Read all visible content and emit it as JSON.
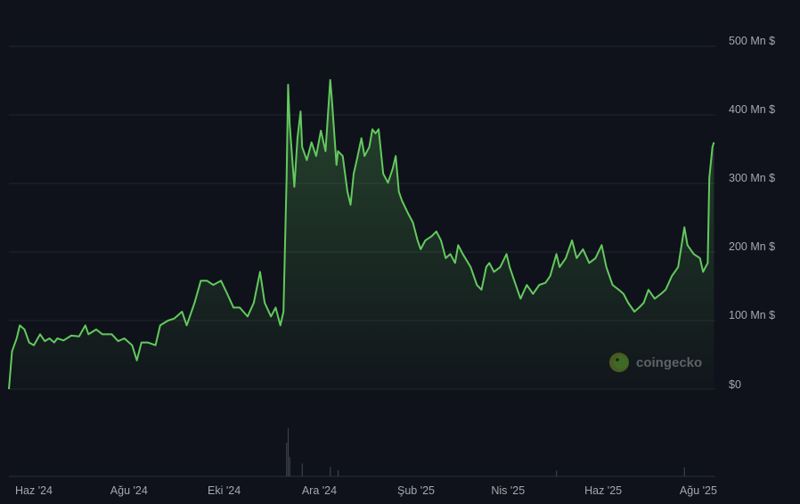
{
  "chart_data": {
    "type": "area",
    "title": "",
    "xlabel": "",
    "ylabel": "",
    "y_unit": "Mn $",
    "ylim": [
      0,
      500
    ],
    "grid": true,
    "y_ticks": [
      {
        "value": 0,
        "label": "$0"
      },
      {
        "value": 100,
        "label": "100 Mn $"
      },
      {
        "value": 200,
        "label": "200 Mn $"
      },
      {
        "value": 300,
        "label": "300 Mn $"
      },
      {
        "value": 400,
        "label": "400 Mn $"
      },
      {
        "value": 500,
        "label": "500 Mn $"
      }
    ],
    "x_ticks": [
      {
        "date": "2024-06-01",
        "label": "Haz '24"
      },
      {
        "date": "2024-08-01",
        "label": "Ağu '24"
      },
      {
        "date": "2024-10-01",
        "label": "Eki '24"
      },
      {
        "date": "2024-12-01",
        "label": "Ara '24"
      },
      {
        "date": "2025-02-01",
        "label": "Şub '25"
      },
      {
        "date": "2025-04-01",
        "label": "Nis '25"
      },
      {
        "date": "2025-06-01",
        "label": "Haz '25"
      },
      {
        "date": "2025-08-01",
        "label": "Ağu '25"
      }
    ],
    "line_color": "#63c95e",
    "background": "#0f121a",
    "series": [
      {
        "x": [
          "2024-05-16",
          "2024-05-18",
          "2024-05-21",
          "2024-05-23",
          "2024-05-26",
          "2024-05-29",
          "2024-06-01",
          "2024-06-05",
          "2024-06-08",
          "2024-06-11",
          "2024-06-14",
          "2024-06-16",
          "2024-06-20",
          "2024-06-25",
          "2024-06-30",
          "2024-07-04",
          "2024-07-06",
          "2024-07-11",
          "2024-07-15",
          "2024-07-21",
          "2024-07-25",
          "2024-07-29",
          "2024-08-03",
          "2024-08-06",
          "2024-08-09",
          "2024-08-13",
          "2024-08-18",
          "2024-08-21",
          "2024-08-26",
          "2024-08-30",
          "2024-09-04",
          "2024-09-07",
          "2024-09-12",
          "2024-09-16",
          "2024-09-20",
          "2024-09-24",
          "2024-09-29",
          "2024-10-03",
          "2024-10-07",
          "2024-10-11",
          "2024-10-16",
          "2024-10-20",
          "2024-10-24",
          "2024-10-27",
          "2024-10-31",
          "2024-11-03",
          "2024-11-06",
          "2024-11-08",
          "2024-11-10",
          "2024-11-11",
          "2024-11-12",
          "2024-11-15",
          "2024-11-17",
          "2024-11-19",
          "2024-11-20",
          "2024-11-23",
          "2024-11-26",
          "2024-11-29",
          "2024-12-02",
          "2024-12-05",
          "2024-12-08",
          "2024-12-09",
          "2024-12-12",
          "2024-12-13",
          "2024-12-16",
          "2024-12-19",
          "2024-12-21",
          "2024-12-23",
          "2024-12-25",
          "2024-12-28",
          "2024-12-30",
          "2025-01-02",
          "2025-01-04",
          "2025-01-06",
          "2025-01-08",
          "2025-01-11",
          "2025-01-14",
          "2025-01-17",
          "2025-01-19",
          "2025-01-21",
          "2025-01-23",
          "2025-01-27",
          "2025-01-30",
          "2025-02-02",
          "2025-02-04",
          "2025-02-07",
          "2025-02-11",
          "2025-02-14",
          "2025-02-17",
          "2025-02-20",
          "2025-02-23",
          "2025-02-26",
          "2025-02-28",
          "2025-03-03",
          "2025-03-08",
          "2025-03-12",
          "2025-03-15",
          "2025-03-18",
          "2025-03-20",
          "2025-03-23",
          "2025-03-27",
          "2025-03-31",
          "2025-04-02",
          "2025-04-05",
          "2025-04-09",
          "2025-04-13",
          "2025-04-17",
          "2025-04-21",
          "2025-04-25",
          "2025-04-28",
          "2025-05-02",
          "2025-05-04",
          "2025-05-08",
          "2025-05-12",
          "2025-05-15",
          "2025-05-19",
          "2025-05-23",
          "2025-05-27",
          "2025-05-31",
          "2025-06-03",
          "2025-06-07",
          "2025-06-11",
          "2025-06-14",
          "2025-06-17",
          "2025-06-21",
          "2025-06-24",
          "2025-06-27",
          "2025-06-30",
          "2025-07-04",
          "2025-07-08",
          "2025-07-11",
          "2025-07-15",
          "2025-07-19",
          "2025-07-23",
          "2025-07-25",
          "2025-07-29",
          "2025-08-02",
          "2025-08-04",
          "2025-08-07",
          "2025-08-08",
          "2025-08-10",
          "2025-08-11"
        ],
        "values": [
          0,
          55,
          74,
          93,
          87,
          68,
          64,
          80,
          70,
          74,
          68,
          74,
          71,
          78,
          77,
          93,
          80,
          87,
          80,
          80,
          70,
          74,
          64,
          42,
          68,
          68,
          64,
          93,
          100,
          103,
          113,
          93,
          126,
          158,
          158,
          152,
          158,
          139,
          119,
          119,
          106,
          126,
          171,
          126,
          106,
          119,
          93,
          113,
          308,
          444,
          386,
          295,
          366,
          405,
          353,
          334,
          360,
          340,
          377,
          347,
          451,
          425,
          327,
          347,
          340,
          288,
          269,
          314,
          334,
          366,
          340,
          353,
          379,
          373,
          379,
          314,
          301,
          321,
          340,
          288,
          275,
          256,
          243,
          217,
          204,
          217,
          223,
          230,
          217,
          191,
          197,
          184,
          210,
          197,
          178,
          152,
          145,
          178,
          184,
          171,
          178,
          197,
          178,
          158,
          132,
          152,
          139,
          152,
          155,
          165,
          197,
          178,
          191,
          217,
          191,
          204,
          184,
          191,
          210,
          178,
          152,
          145,
          139,
          126,
          113,
          119,
          126,
          145,
          132,
          139,
          145,
          165,
          178,
          236,
          210,
          197,
          191,
          171,
          184,
          308,
          353,
          360
        ]
      }
    ],
    "volume": {
      "dates": [
        "2024-11-10",
        "2024-11-11",
        "2024-11-12",
        "2024-11-20",
        "2024-12-08",
        "2024-12-13",
        "2025-05-02",
        "2025-07-23"
      ],
      "relative_values": [
        0.7,
        1.0,
        0.4,
        0.27,
        0.2,
        0.13,
        0.12,
        0.19
      ]
    }
  },
  "watermark": {
    "text": "coingecko"
  }
}
